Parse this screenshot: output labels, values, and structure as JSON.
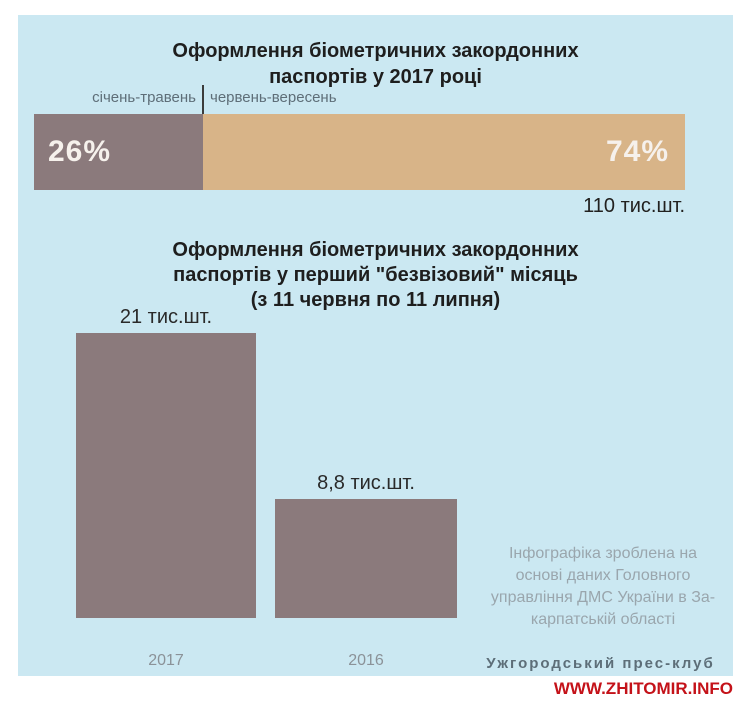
{
  "colors": {
    "page_bg": "#ffffff",
    "panel_bg": "#cbe8f2",
    "bar_gray": "#8b7a7c",
    "bar_tan": "#d8b488",
    "title_text": "#1e1e1e",
    "segment_label_text": "#5e6e78",
    "percent_text": "#f6f1ec",
    "value_text": "#22211f",
    "year_label_text": "#8b9298",
    "source_text": "#9aa6ad",
    "press_club_text": "#5d6e78",
    "watermark_red": "#c41219"
  },
  "chart1": {
    "title": "Оформлення біометричних закордонних\nпаспортів у 2017 році",
    "segments": [
      {
        "label": "січень-травень",
        "pct": 26,
        "pct_label": "26%"
      },
      {
        "label": "червень-вересень",
        "pct": 74,
        "pct_label": "74%"
      }
    ],
    "total_label": "110 тис.шт."
  },
  "chart2": {
    "title": "Оформлення біометричних закордонних\nпаспортів у перший \"безвізовий\" місяць\n(з 11 червня по 11 липня)",
    "bars": [
      {
        "year": "2017",
        "value": 21,
        "value_label": "21 тис.шт."
      },
      {
        "year": "2016",
        "value": 8.8,
        "value_label": "8,8 тис.шт."
      }
    ]
  },
  "source_note": "Інфографіка зроблена на\nоснові даних Головного\nуправління ДМС України в За-\nкарпатській області",
  "credit": "Ужгородський прес-клуб",
  "watermark": "WWW.ZHITOMIR.INFO",
  "chart_data": [
    {
      "type": "bar",
      "subtype": "stacked-horizontal-percent",
      "title": "Оформлення біометричних закордонних паспортів у 2017 році",
      "categories": [
        "січень-травень",
        "червень-вересень"
      ],
      "values": [
        26,
        74
      ],
      "unit": "%",
      "total_annotation": "110 тис.шт.",
      "legend_position": "above-bar",
      "grid": false,
      "colors": [
        "#8b7a7c",
        "#d8b488"
      ]
    },
    {
      "type": "bar",
      "title": "Оформлення біометричних закордонних паспортів у перший \"безвізовий\" місяць (з 11 червня по 11 липня)",
      "categories": [
        "2017",
        "2016"
      ],
      "values": [
        21,
        8.8
      ],
      "unit": "тис.шт.",
      "value_labels": [
        "21 тис.шт.",
        "8,8 тис.шт."
      ],
      "ylim": [
        0,
        21
      ],
      "grid": false,
      "colors": [
        "#8b7a7c",
        "#8b7a7c"
      ]
    }
  ]
}
